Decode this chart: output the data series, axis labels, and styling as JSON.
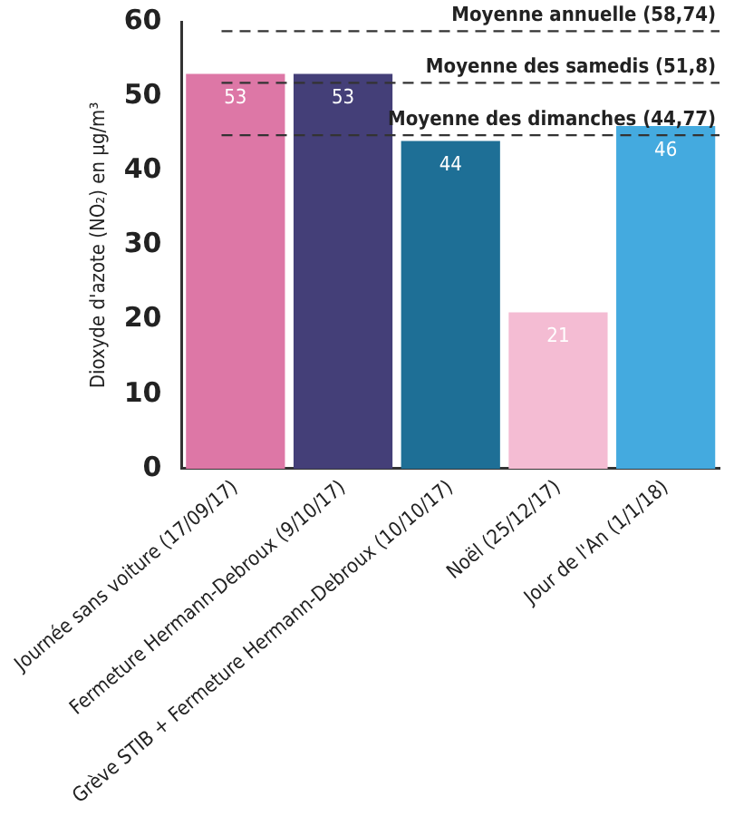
{
  "chart_data": {
    "type": "bar",
    "ylabel": "Dioxyde d'azote (NO₂) en µg/m³",
    "categories": [
      "Journée sans voiture (17/09/17)",
      "Fermeture Hermann-Debroux (9/10/17)",
      "Grève STIB + Fermeture Hermann-Debroux (10/10/17)",
      "Noël (25/12/17)",
      "Jour de l'An (1/1/18)"
    ],
    "values": [
      53,
      53,
      44,
      21,
      46
    ],
    "colors": [
      "#dd77a6",
      "#443f78",
      "#1e6f96",
      "#f4bcd3",
      "#44aadf"
    ],
    "ylim": [
      0,
      60
    ],
    "yticks": [
      0,
      10,
      20,
      30,
      40,
      50,
      60
    ],
    "grid": false,
    "legend": false,
    "data_labels": true,
    "ref_lines": [
      {
        "axis": "y",
        "value": 58.74,
        "label": "Moyenne annuelle (58,74)",
        "color": "#333333",
        "line_style": "dashed"
      },
      {
        "axis": "y",
        "value": 51.8,
        "label": "Moyenne des samedis (51,8)",
        "color": "#333333",
        "line_style": "dashed"
      },
      {
        "axis": "y",
        "value": 44.77,
        "label": "Moyenne des dimanches (44,77)",
        "color": "#333333",
        "line_style": "dashed"
      }
    ]
  }
}
